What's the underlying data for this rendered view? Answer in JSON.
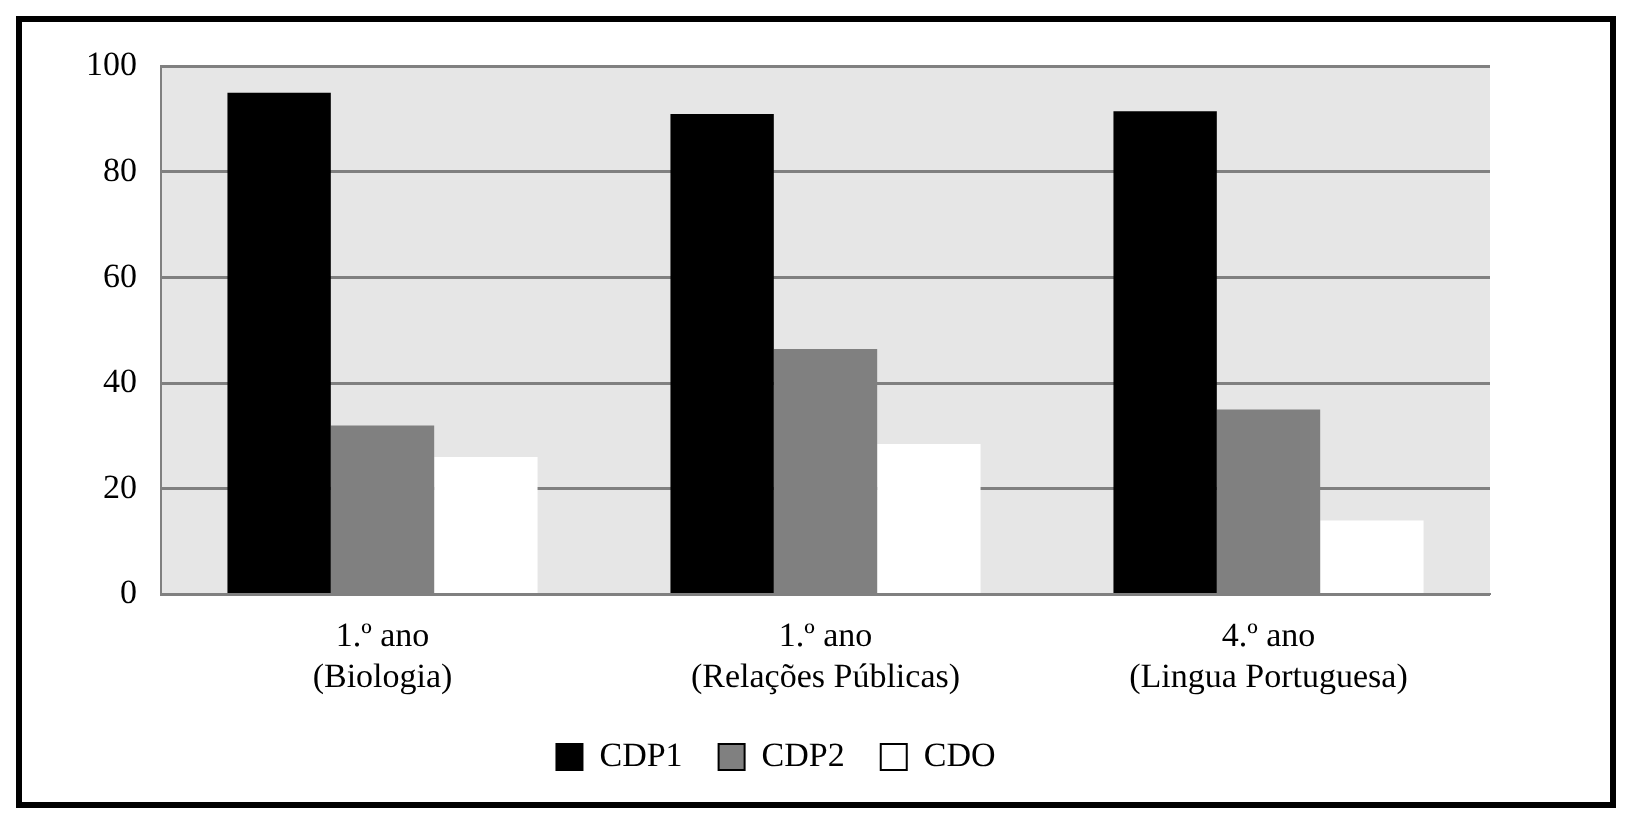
{
  "chart_data": {
    "type": "bar",
    "categories": [
      "1.º ano\n(Biologia)",
      "1.º ano\n(Relações Públicas)",
      "4.º ano\n(Lingua Portuguesa)"
    ],
    "series": [
      {
        "name": "CDP1",
        "color": "#000000",
        "values": [
          95,
          91,
          91.5
        ]
      },
      {
        "name": "CDP2",
        "color": "#808080",
        "values": [
          32,
          46.5,
          35
        ]
      },
      {
        "name": "CDO",
        "color": "#ffffff",
        "values": [
          26,
          28.5,
          14
        ]
      }
    ],
    "ylim": [
      0,
      100
    ],
    "yticks": [
      0,
      20,
      40,
      60,
      80,
      100
    ],
    "grid": "y",
    "legend": "bottom"
  }
}
